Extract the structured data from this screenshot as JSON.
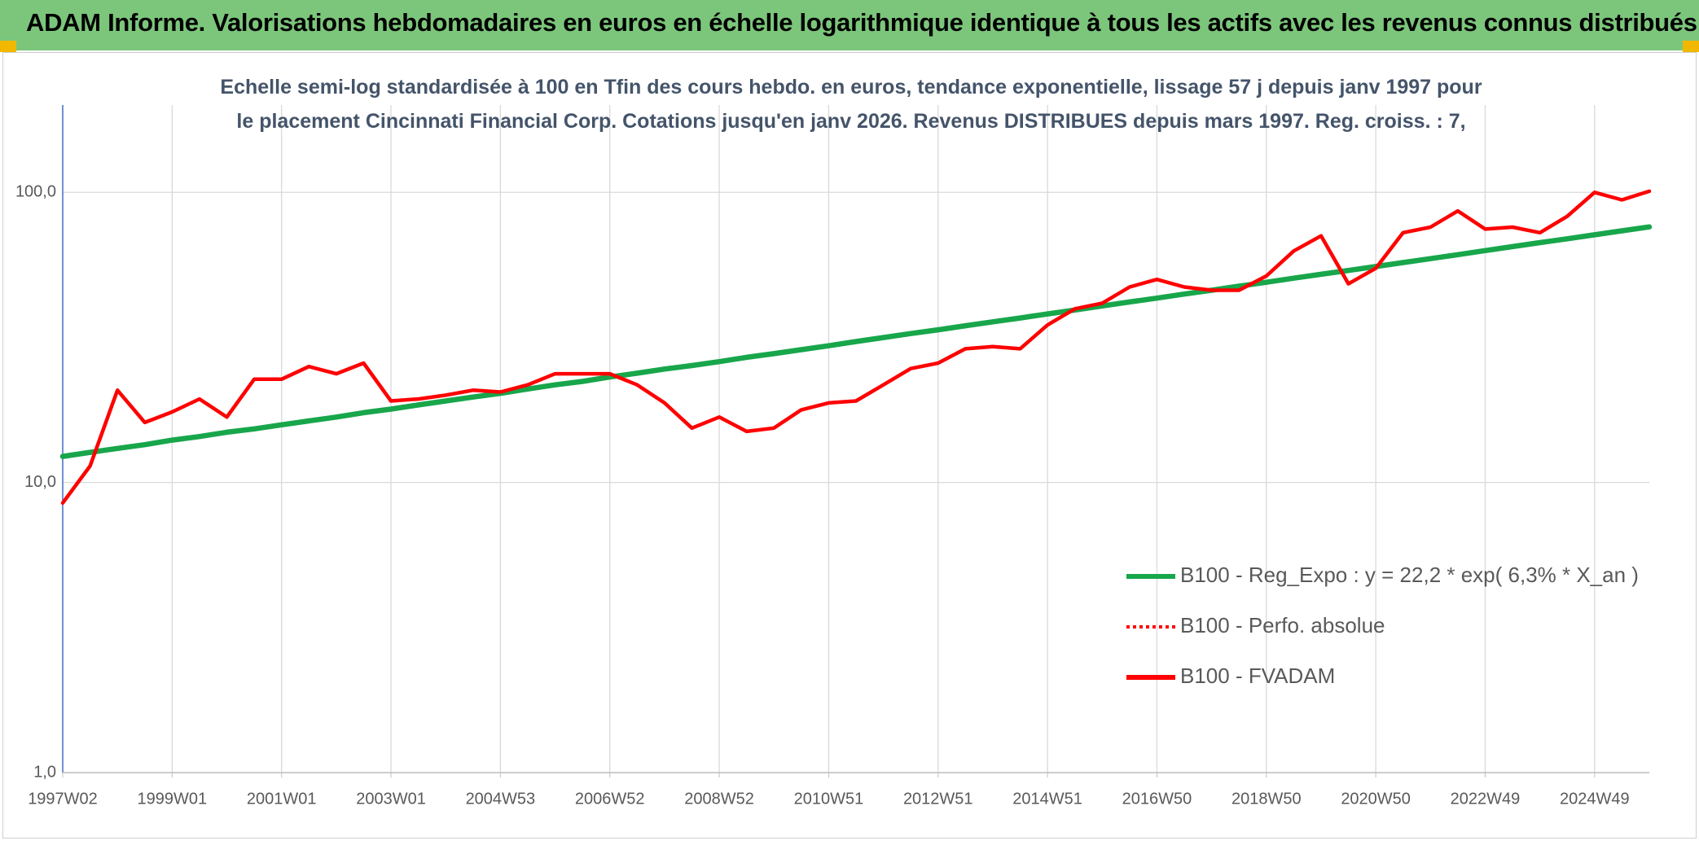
{
  "header": {
    "title": "ADAM Informe. Valorisations hebdomadaires en euros en échelle logarithmique identique à tous les actifs avec les revenus connus distribués"
  },
  "chart_data": {
    "type": "line",
    "subtitle": "Echelle semi-log standardisée à 100 en Tfin des cours hebdo. en euros, tendance exponentielle, lissage 57 j depuis janv 1997 pour le placement Cincinnati Financial Corp. Cotations jusqu'en janv 2026. Revenus DISTRIBUES depuis mars 1997. Reg. croiss. : 7,",
    "categories": [
      "1997W02",
      null,
      null,
      null,
      "1999W01",
      null,
      null,
      null,
      "2001W01",
      null,
      null,
      null,
      "2003W01",
      null,
      null,
      null,
      "2004W53",
      null,
      null,
      null,
      "2006W52",
      null,
      null,
      null,
      "2008W52",
      null,
      null,
      null,
      "2010W51",
      null,
      null,
      null,
      "2012W51",
      null,
      null,
      null,
      "2014W51",
      null,
      null,
      null,
      "2016W50",
      null,
      null,
      null,
      "2018W50",
      null,
      null,
      null,
      "2020W50",
      null,
      null,
      null,
      "2022W49",
      null,
      null,
      null,
      "2024W49",
      null,
      null
    ],
    "series": [
      {
        "name": "B100 - Reg_Expo : y = 22,2 * exp( 6,3% *  X_an )",
        "color": "#18a64b",
        "style": "solid",
        "values": [
          12.3,
          12.7,
          13.1,
          13.5,
          14.0,
          14.4,
          14.9,
          15.3,
          15.8,
          16.3,
          16.8,
          17.4,
          17.9,
          18.5,
          19.1,
          19.7,
          20.3,
          21.0,
          21.7,
          22.3,
          23.1,
          23.8,
          24.6,
          25.3,
          26.1,
          27.0,
          27.8,
          28.7,
          29.6,
          30.6,
          31.6,
          32.6,
          33.6,
          34.7,
          35.8,
          36.9,
          38.1,
          39.3,
          40.6,
          41.9,
          43.2,
          44.6,
          46.0,
          47.5,
          49.0,
          50.6,
          52.2,
          53.8,
          55.5,
          57.3,
          59.1,
          61.0,
          63.0,
          65.0,
          67.1,
          69.2,
          71.4,
          73.7,
          76.0
        ]
      },
      {
        "name": "B100 - Perfo. absolue",
        "color": "#ff0000",
        "style": "dotted",
        "values": [
          null,
          null,
          null,
          null,
          null,
          null,
          null,
          null,
          null,
          null,
          null,
          null,
          null,
          null,
          null,
          null,
          null,
          null,
          null,
          null,
          null,
          null,
          null,
          null,
          null,
          null,
          null,
          null,
          null,
          null,
          null,
          null,
          null,
          null,
          null,
          null,
          null,
          null,
          null,
          null,
          null,
          null,
          null,
          null,
          null,
          null,
          null,
          null,
          null,
          null,
          null,
          null,
          null,
          null,
          null,
          null,
          null,
          null,
          null
        ]
      },
      {
        "name": "B100 - FVADAM",
        "color": "#ff0000",
        "style": "solid",
        "values": [
          8.5,
          11.4,
          20.8,
          16.1,
          17.5,
          19.4,
          16.8,
          22.7,
          22.7,
          25.1,
          23.7,
          25.8,
          19.1,
          19.4,
          20.0,
          20.8,
          20.5,
          21.7,
          23.7,
          23.7,
          23.7,
          21.7,
          18.8,
          15.4,
          16.8,
          15.0,
          15.4,
          17.8,
          18.8,
          19.1,
          21.7,
          24.7,
          25.8,
          28.9,
          29.4,
          28.9,
          34.9,
          39.7,
          41.5,
          47.2,
          50.1,
          47.2,
          46.0,
          46.0,
          51.5,
          62.8,
          70.8,
          48.4,
          54.7,
          72.6,
          75.9,
          86.3,
          74.7,
          75.9,
          72.6,
          82.7,
          100,
          94.2,
          100.9
        ]
      }
    ],
    "ylim": [
      1,
      200
    ],
    "log_y": true,
    "yticks": [
      {
        "value": 1,
        "label": "1,0"
      },
      {
        "value": 10,
        "label": "10,0"
      },
      {
        "value": 100,
        "label": "100,0"
      }
    ],
    "grid": true,
    "legend": "right"
  }
}
